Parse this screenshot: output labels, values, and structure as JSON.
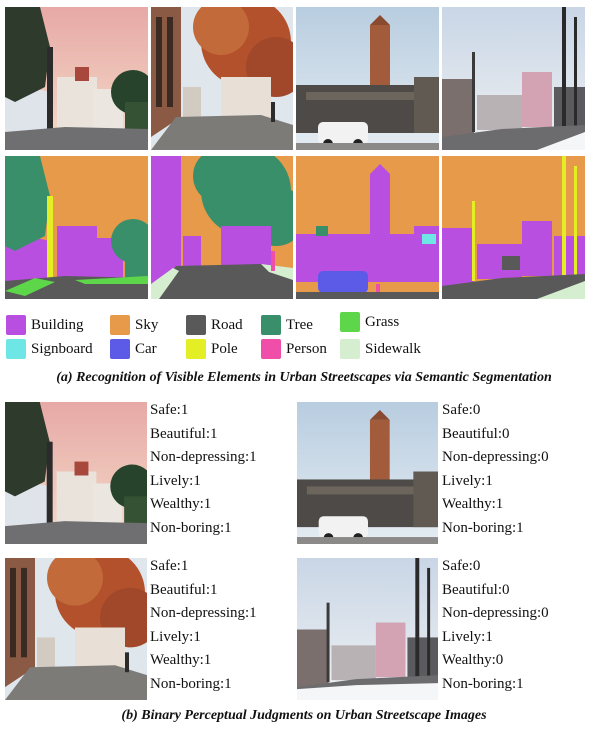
{
  "legend": [
    {
      "label": "Building",
      "color": "#b94fe0"
    },
    {
      "label": "Sky",
      "color": "#e69a4a"
    },
    {
      "label": "Road",
      "color": "#595959"
    },
    {
      "label": "Tree",
      "color": "#3a8f6b"
    },
    {
      "label": "Grass",
      "color": "#5ed64a"
    },
    {
      "label": "Signboard",
      "color": "#6fe6e6"
    },
    {
      "label": "Car",
      "color": "#5b5be8"
    },
    {
      "label": "Pole",
      "color": "#e3ef24"
    },
    {
      "label": "Person",
      "color": "#ef4fa8"
    },
    {
      "label": "Sidewalk",
      "color": "#d6eed0"
    }
  ],
  "caption_a": "(a) Recognition of Visible Elements in Urban Streetscapes via Semantic Segmentation",
  "caption_b": "(b) Binary Perceptual Judgments on Urban Streetscape Images",
  "judgments": [
    {
      "safe": "Safe:1",
      "beautiful": "Beautiful:1",
      "nondep": "Non-depressing:1",
      "lively": "Lively:1",
      "wealthy": "Wealthy:1",
      "nonboring": "Non-boring:1"
    },
    {
      "safe": "Safe:0",
      "beautiful": "Beautiful:0",
      "nondep": "Non-depressing:0",
      "lively": "Lively:1",
      "wealthy": "Wealthy:1",
      "nonboring": "Non-boring:1"
    },
    {
      "safe": "Safe:1",
      "beautiful": "Beautiful:1",
      "nondep": "Non-depressing:1",
      "lively": "Lively:1",
      "wealthy": "Wealthy:1",
      "nonboring": "Non-boring:1"
    },
    {
      "safe": "Safe:0",
      "beautiful": "Beautiful:0",
      "nondep": "Non-depressing:0",
      "lively": "Lively:1",
      "wealthy": "Wealthy:0",
      "nonboring": "Non-boring:1"
    }
  ]
}
